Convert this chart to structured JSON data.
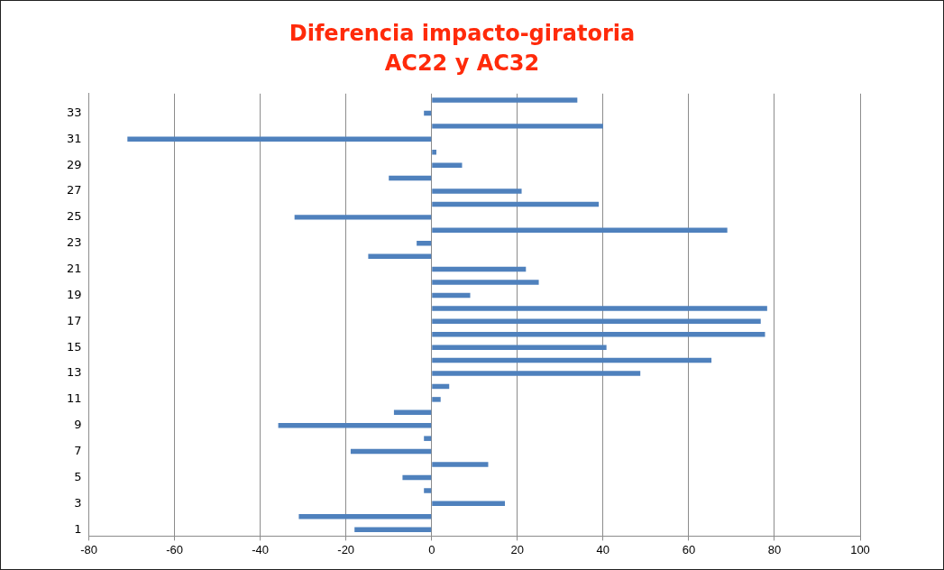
{
  "chart_data": {
    "type": "bar",
    "orientation": "horizontal",
    "title": "Diferencia impacto-giratoria\nAC22 y AC32",
    "categories": [
      null,
      "33",
      null,
      "31",
      null,
      "29",
      null,
      "27",
      null,
      "25",
      null,
      "23",
      null,
      "21",
      null,
      "19",
      null,
      "17",
      null,
      "15",
      null,
      "13",
      null,
      "11",
      null,
      "9",
      null,
      "7",
      null,
      "5",
      null,
      "3",
      null,
      "1"
    ],
    "values": [
      34,
      -1.8,
      40,
      -71,
      1.1,
      7.1,
      -10,
      21,
      39,
      -32,
      69,
      -3.5,
      -14.8,
      22,
      25,
      9,
      78.3,
      76.8,
      77.8,
      40.8,
      65.3,
      48.7,
      4.1,
      2.1,
      -8.8,
      -35.8,
      -1.8,
      -18.9,
      13.2,
      -6.8,
      -1.8,
      17.1,
      -31,
      -18
    ],
    "color": "#4f81bd",
    "xlim": [
      -80,
      100
    ],
    "xticks": [
      -80,
      -60,
      -40,
      -20,
      0,
      20,
      40,
      60,
      80,
      100
    ],
    "grid": "x"
  }
}
